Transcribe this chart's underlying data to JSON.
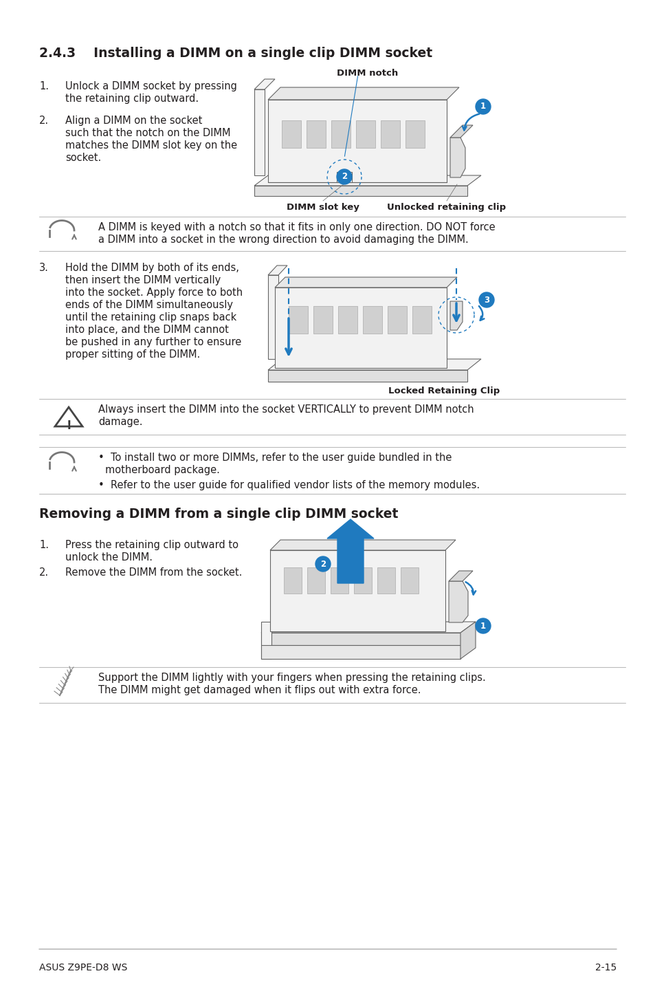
{
  "bg_color": "#ffffff",
  "text_color": "#231f20",
  "section_title": "2.4.3    Installing a DIMM on a single clip DIMM socket",
  "section2_title": "Removing a DIMM from a single clip DIMM socket",
  "footer_left": "ASUS Z9PE-D8 WS",
  "footer_right": "2-15",
  "step1_lines": [
    "Unlock a DIMM socket by pressing",
    "the retaining clip outward."
  ],
  "step2_lines": [
    "Align a DIMM on the socket",
    "such that the notch on the DIMM",
    "matches the DIMM slot key on the",
    "socket."
  ],
  "step3_lines": [
    "Hold the DIMM by both of its ends,",
    "then insert the DIMM vertically",
    "into the socket. Apply force to both",
    "ends of the DIMM simultaneously",
    "until the retaining clip snaps back",
    "into place, and the DIMM cannot",
    "be pushed in any further to ensure",
    "proper sitting of the DIMM."
  ],
  "note1_lines": [
    "A DIMM is keyed with a notch so that it fits in only one direction. DO NOT force",
    "a DIMM into a socket in the wrong direction to avoid damaging the DIMM."
  ],
  "caution_lines": [
    "Always insert the DIMM into the socket VERTICALLY to prevent DIMM notch",
    "damage."
  ],
  "bullet1_lines": [
    "To install two or more DIMMs, refer to the user guide bundled in the",
    "motherboard package."
  ],
  "bullet2": "Refer to the user guide for qualified vendor lists of the memory modules.",
  "rstep1_lines": [
    "Press the retaining clip outward to",
    "unlock the DIMM."
  ],
  "rstep2": "Remove the DIMM from the socket.",
  "note3_lines": [
    "Support the DIMM lightly with your fingers when pressing the retaining clips.",
    "The DIMM might get damaged when it flips out with extra force."
  ],
  "blue": "#1f7abf",
  "light_gray_line": "#bbbbbb",
  "dark_text": "#231f20",
  "mid_gray": "#666666",
  "light_fill": "#f2f2f2",
  "chip_fill": "#d0d0d0",
  "clip_fill": "#e0e0e0"
}
